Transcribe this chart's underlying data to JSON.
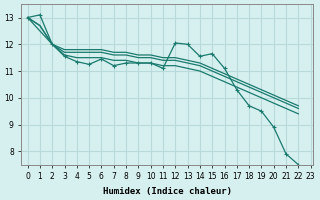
{
  "xlabel": "Humidex (Indice chaleur)",
  "ylabel": "",
  "bg_color": "#d6f0ef",
  "grid_color": "#b8dada",
  "line_color": "#1a7a6e",
  "xlim": [
    0,
    23
  ],
  "ylim": [
    7.5,
    13.5
  ],
  "xticks": [
    0,
    1,
    2,
    3,
    4,
    5,
    6,
    7,
    8,
    9,
    10,
    11,
    12,
    13,
    14,
    15,
    16,
    17,
    18,
    19,
    20,
    21,
    22,
    23
  ],
  "yticks": [
    8,
    9,
    10,
    11,
    12,
    13
  ],
  "series1": [
    13.0,
    13.1,
    12.0,
    11.55,
    11.35,
    11.25,
    11.45,
    11.2,
    11.3,
    11.3,
    11.3,
    11.1,
    12.05,
    12.0,
    11.55,
    11.65,
    11.1,
    10.3,
    9.7,
    9.5,
    8.9,
    7.9,
    7.5
  ],
  "series2": [
    13.0,
    12.7,
    12.0,
    11.7,
    11.7,
    11.7,
    11.7,
    11.6,
    11.6,
    11.5,
    11.5,
    11.4,
    11.4,
    11.3,
    11.2,
    11.0,
    10.8,
    10.6,
    10.4,
    10.2,
    10.0,
    9.8,
    9.6
  ],
  "series3": [
    13.0,
    12.7,
    12.0,
    11.8,
    11.8,
    11.8,
    11.8,
    11.7,
    11.7,
    11.6,
    11.6,
    11.5,
    11.5,
    11.4,
    11.3,
    11.1,
    10.9,
    10.7,
    10.5,
    10.3,
    10.1,
    9.9,
    9.7
  ],
  "series4": [
    13.0,
    12.5,
    12.0,
    11.6,
    11.5,
    11.5,
    11.5,
    11.4,
    11.4,
    11.3,
    11.3,
    11.2,
    11.2,
    11.1,
    11.0,
    10.8,
    10.6,
    10.4,
    10.2,
    10.0,
    9.8,
    9.6,
    9.4
  ]
}
